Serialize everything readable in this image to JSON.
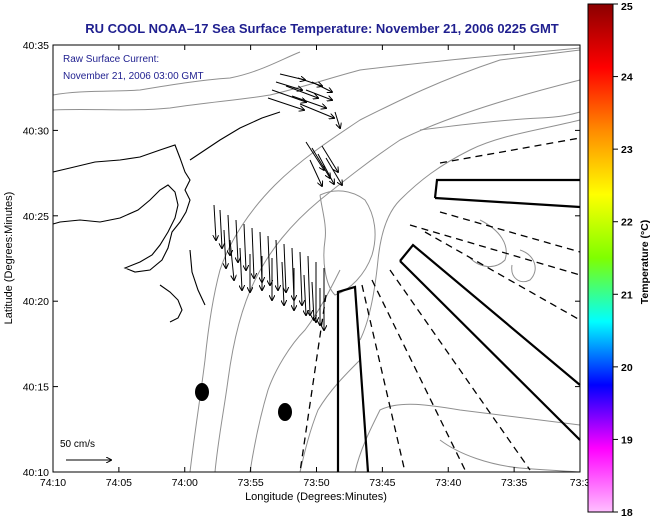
{
  "title": "RU COOL  NOAA–17  Sea Surface Temperature:  November 21, 2006 0225 GMT",
  "current_note": {
    "line1": "Raw Surface Current:",
    "line2": "November 21, 2006 03:00 GMT"
  },
  "x_axis": {
    "label": "Longitude (Degrees:Minutes)",
    "ticks": [
      "74:10",
      "74:05",
      "74:00",
      "73:55",
      "73:50",
      "73:45",
      "73:40",
      "73:35",
      "73:3"
    ]
  },
  "y_axis": {
    "label": "Latitude (Degrees:Minutes)",
    "ticks": [
      "40:35",
      "40:30",
      "40:25",
      "40:20",
      "40:15",
      "40:10"
    ]
  },
  "colorbar": {
    "label": "Temperature (°C)",
    "ticks": [
      "25",
      "24",
      "23",
      "22",
      "21",
      "20",
      "19",
      "18"
    ],
    "colors": [
      "#8b0000",
      "#ff0000",
      "#ff8c00",
      "#ffff00",
      "#7fff00",
      "#00ffff",
      "#0000ff",
      "#ff00ff",
      "#ffc0ff"
    ]
  },
  "scale_label": "50 cm/s"
}
